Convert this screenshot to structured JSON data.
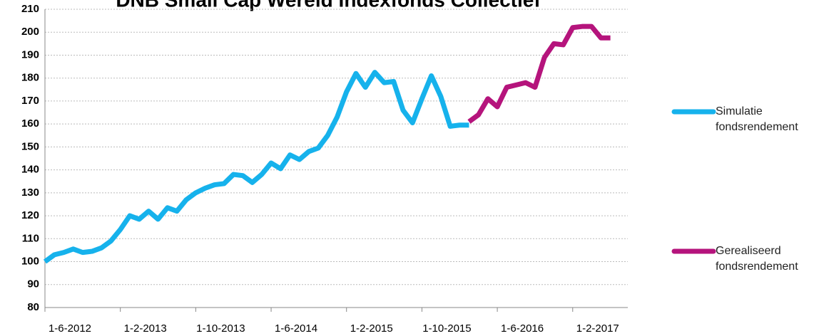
{
  "chart_data": {
    "type": "line",
    "title": "DNB Small Cap Wereld Indexfonds Collectief",
    "categories": [
      "1-6-2012",
      null,
      null,
      null,
      null,
      null,
      null,
      null,
      "1-2-2013",
      null,
      null,
      null,
      null,
      null,
      null,
      null,
      "1-10-2013",
      null,
      null,
      null,
      null,
      null,
      null,
      null,
      "1-6-2014",
      null,
      null,
      null,
      null,
      null,
      null,
      null,
      "1-2-2015",
      null,
      null,
      null,
      null,
      null,
      null,
      null,
      "1-10-2015",
      null,
      null,
      null,
      null,
      null,
      null,
      null,
      "1-6-2016",
      null,
      null,
      null,
      null,
      null,
      null,
      null,
      "1-2-2017",
      null,
      null,
      null,
      null
    ],
    "series": [
      {
        "name": "Simulatie fondsrendement",
        "color": "#16b2ec",
        "values": [
          100,
          103,
          104,
          105.5,
          104,
          104.5,
          106,
          109,
          114,
          120,
          118.5,
          122,
          118.5,
          123.5,
          122,
          127,
          130,
          132,
          133.5,
          134,
          138,
          137.5,
          134.5,
          138,
          143,
          140.5,
          146.5,
          144.5,
          148,
          149.5,
          155,
          163,
          174,
          182,
          176,
          182.5,
          178,
          178.5,
          166,
          160.5,
          171,
          181,
          172,
          159,
          159.5,
          159.5,
          null,
          null,
          null,
          null,
          null,
          null,
          null,
          null,
          null,
          null,
          null,
          null,
          null,
          null,
          null
        ]
      },
      {
        "name": "Gerealiseerd fondsrendement",
        "color": "#b5147c",
        "values": [
          null,
          null,
          null,
          null,
          null,
          null,
          null,
          null,
          null,
          null,
          null,
          null,
          null,
          null,
          null,
          null,
          null,
          null,
          null,
          null,
          null,
          null,
          null,
          null,
          null,
          null,
          null,
          null,
          null,
          null,
          null,
          null,
          null,
          null,
          null,
          null,
          null,
          null,
          null,
          null,
          null,
          null,
          null,
          null,
          null,
          161,
          164,
          171,
          167.5,
          176,
          177,
          178,
          176,
          189,
          195,
          194.5,
          202,
          202.5,
          202.5,
          197.5,
          197.5
        ]
      }
    ],
    "ylim": [
      80,
      210
    ],
    "yticks": [
      80,
      90,
      100,
      110,
      120,
      130,
      140,
      150,
      160,
      170,
      180,
      190,
      200,
      210
    ],
    "grid": true
  }
}
